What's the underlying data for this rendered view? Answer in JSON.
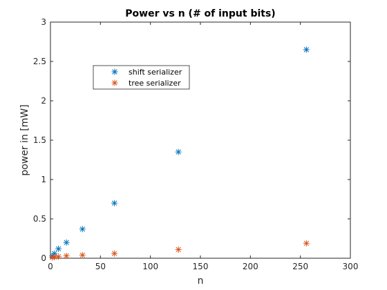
{
  "chart_data": {
    "type": "scatter",
    "title": "Power vs n (# of input bits)",
    "xlabel": "n",
    "ylabel": "power in [mW]",
    "xlim": [
      0,
      300
    ],
    "ylim": [
      0,
      3
    ],
    "xticks": [
      0,
      50,
      100,
      150,
      200,
      250,
      300
    ],
    "yticks": [
      0,
      0.5,
      1,
      1.5,
      2,
      2.5,
      3
    ],
    "xtick_labels": [
      "0",
      "50",
      "100",
      "150",
      "200",
      "250",
      "300"
    ],
    "ytick_labels": [
      "0",
      "0.5",
      "1",
      "1.5",
      "2",
      "2.5",
      "3"
    ],
    "grid": false,
    "legend_position": "upper-left",
    "series": [
      {
        "name": "shift serializer",
        "color": "#0072BD",
        "marker": "asterisk",
        "x": [
          2,
          4,
          8,
          16,
          32,
          64,
          128,
          256
        ],
        "y": [
          0.03,
          0.06,
          0.12,
          0.2,
          0.37,
          0.7,
          1.35,
          2.65
        ]
      },
      {
        "name": "tree serializer",
        "color": "#D95319",
        "marker": "asterisk",
        "x": [
          2,
          4,
          8,
          16,
          32,
          64,
          128,
          256
        ],
        "y": [
          0.01,
          0.015,
          0.02,
          0.03,
          0.04,
          0.06,
          0.11,
          0.19
        ]
      }
    ]
  }
}
